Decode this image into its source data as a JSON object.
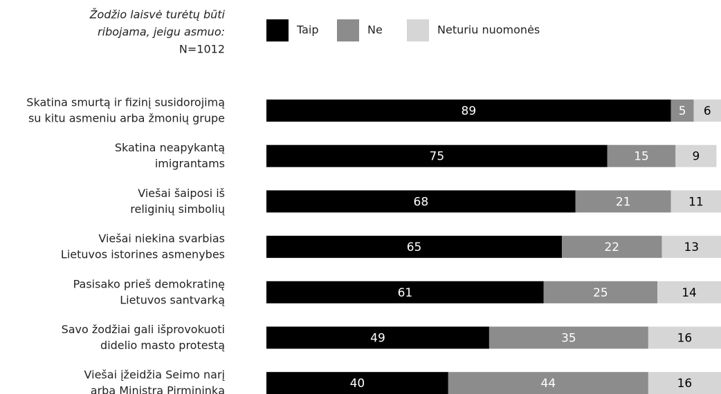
{
  "chart_data": {
    "type": "stacked-bar-horizontal",
    "title": [
      "Žodžio laisvė turėtų būti",
      "ribojama, jeigu asmuo:"
    ],
    "subtitle": "N=1012",
    "categories": [
      [
        "Skatina smurtą ir fizinį susidorojimą",
        "su kitu asmeniu arba žmonių grupe"
      ],
      [
        "Skatina neapykantą",
        "imigrantams"
      ],
      [
        "Viešai šaiposi iš",
        "religinių simbolių"
      ],
      [
        "Viešai niekina svarbias",
        "Lietuvos istorines asmenybes"
      ],
      [
        "Pasisako prieš demokratinę",
        "Lietuvos santvarką"
      ],
      [
        "Savo žodžiai gali išprovokuoti",
        "didelio masto protestą"
      ],
      [
        "Viešai įžeidžia Seimo narį",
        "arba Ministrą Pirmininką"
      ]
    ],
    "series": [
      {
        "name": "Taip",
        "color": "#000000",
        "label_color": "#ffffff",
        "values": [
          89,
          75,
          68,
          65,
          61,
          49,
          40
        ]
      },
      {
        "name": "Ne",
        "color": "#8c8c8c",
        "label_color": "#ffffff",
        "values": [
          5,
          15,
          21,
          22,
          25,
          35,
          44
        ]
      },
      {
        "name": "Neturiu nuomonės",
        "color": "#d6d6d6",
        "label_color": "#000000",
        "values": [
          6,
          9,
          11,
          13,
          14,
          16,
          16
        ]
      }
    ],
    "xlim": [
      0,
      100
    ]
  }
}
